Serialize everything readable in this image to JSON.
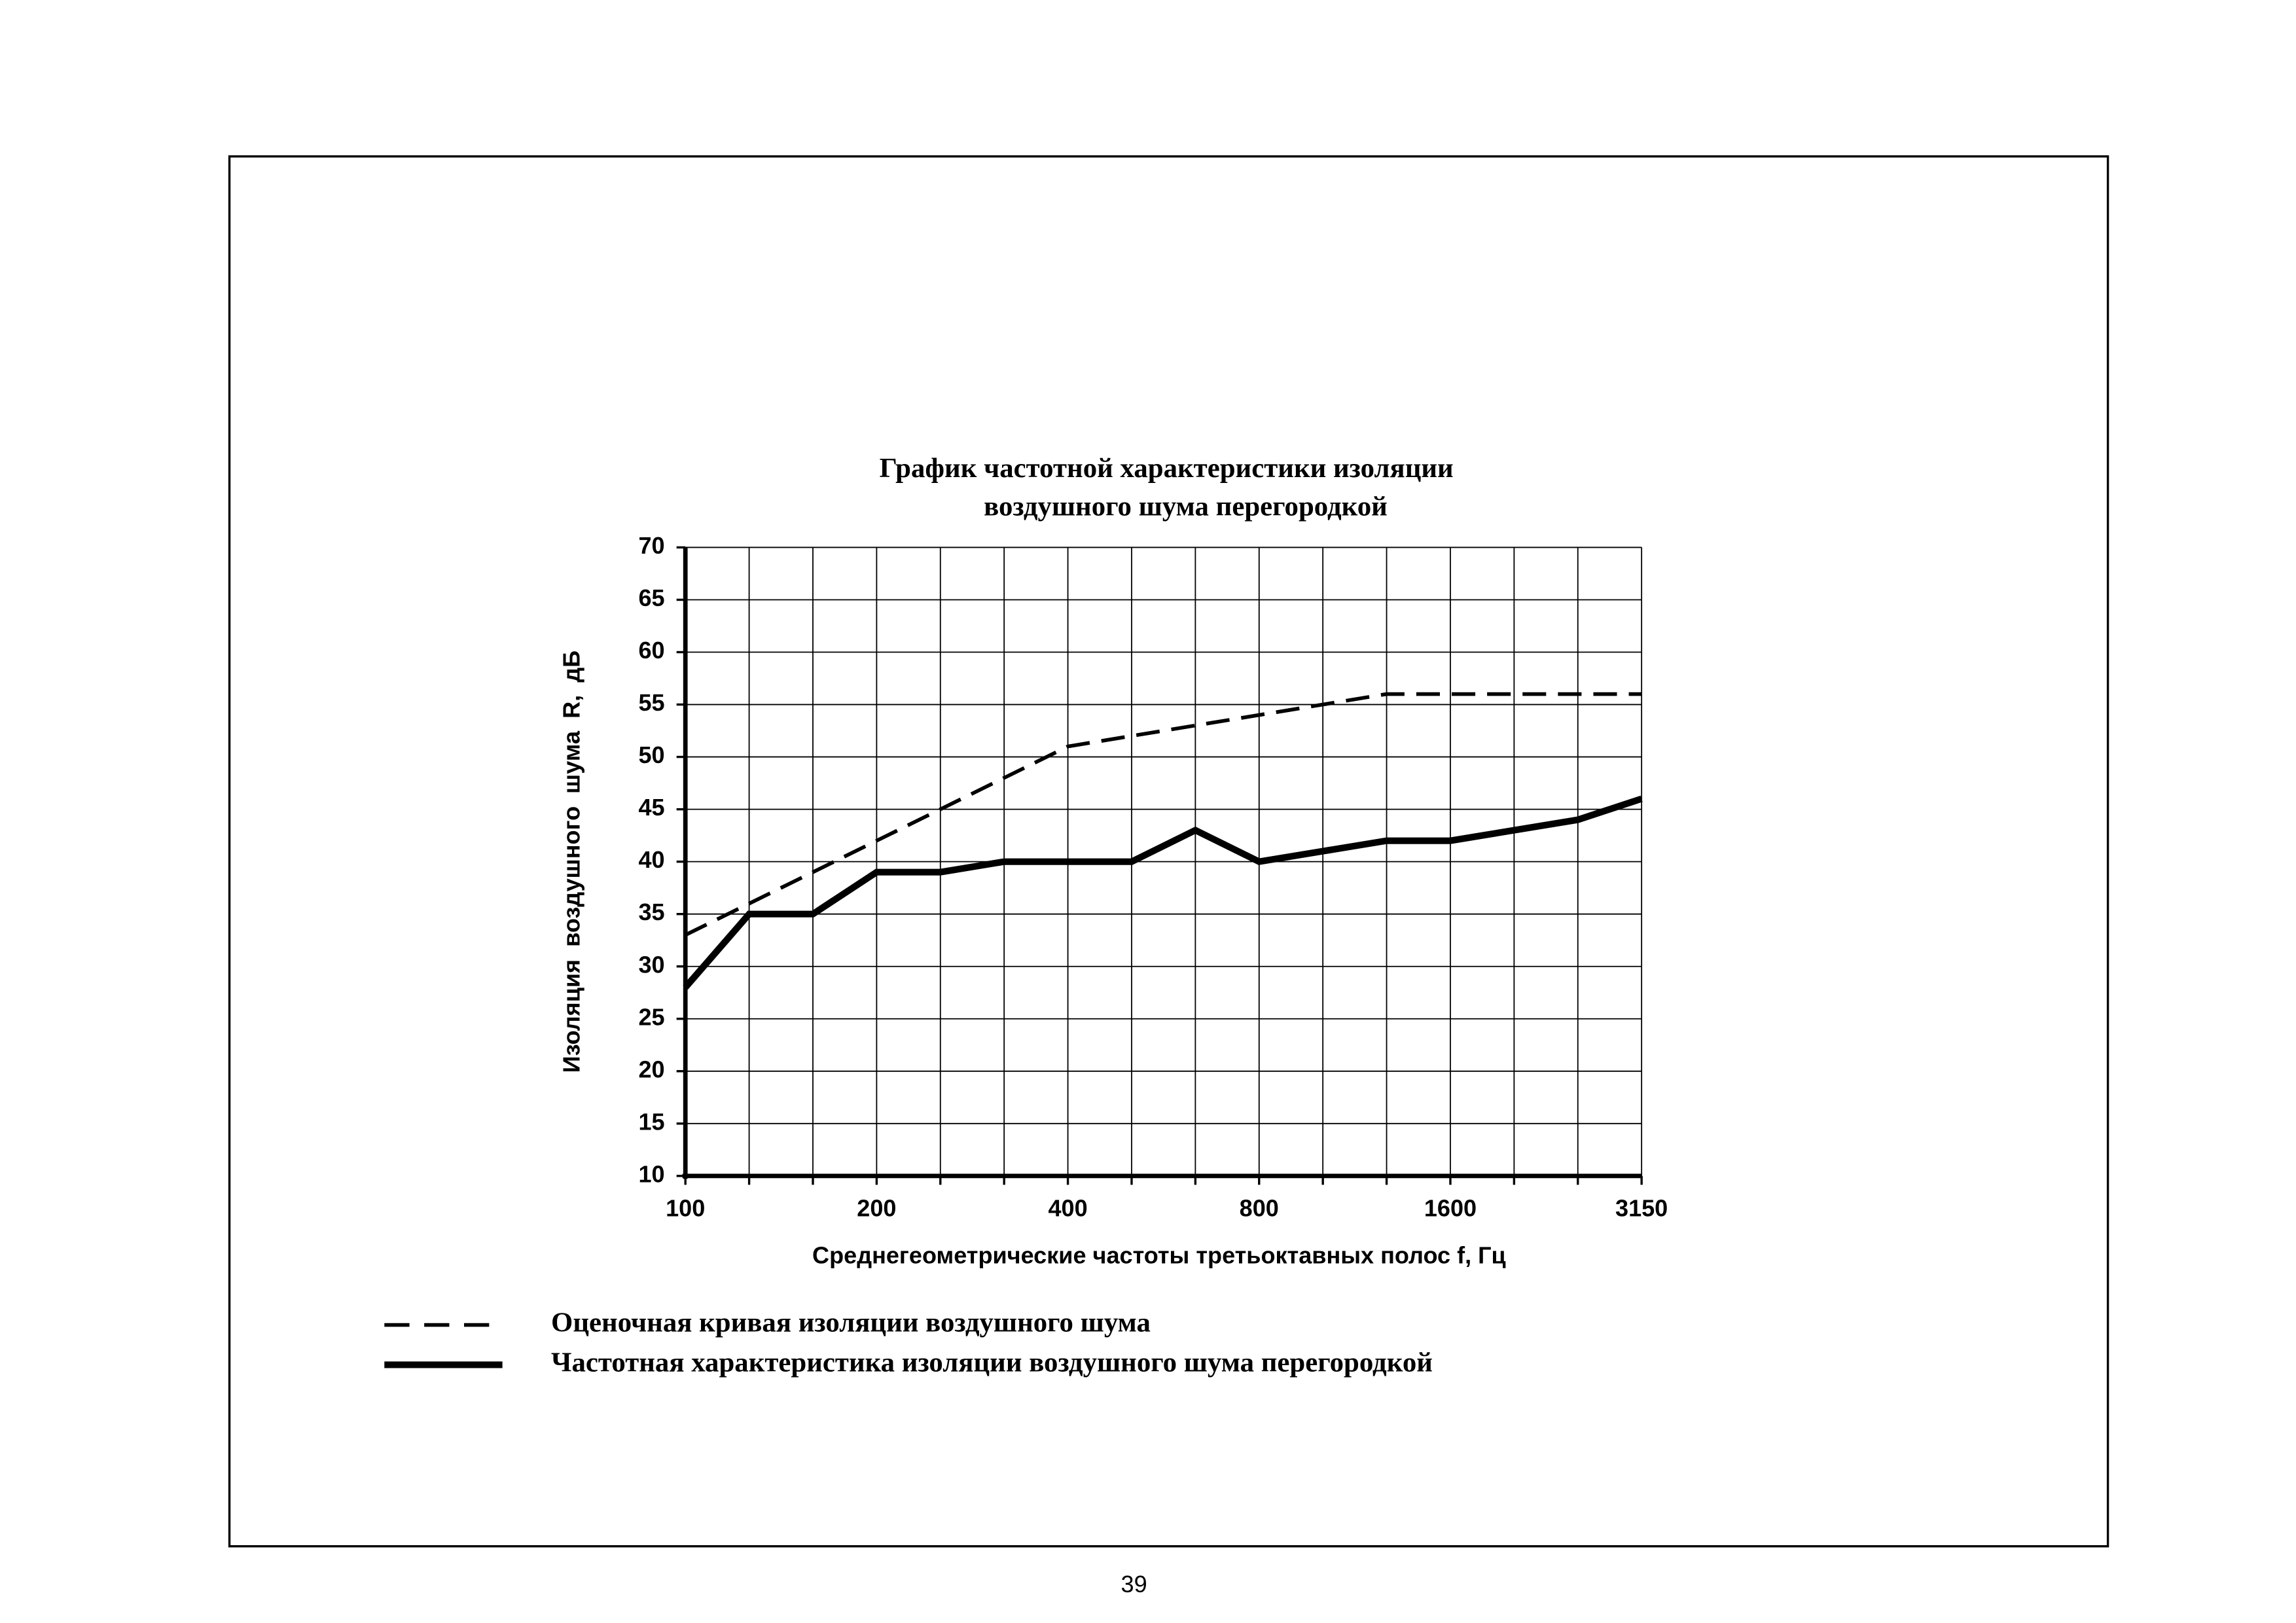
{
  "chart_data": {
    "type": "line",
    "title": [
      "График частотной характеристики изоляции",
      "воздушного шума перегородкой"
    ],
    "x_label": "Среднегеометрические частоты третьоктавных полос f,  Гц",
    "y_label": "Изоляция воздушного шума R, дБ",
    "categories": [
      "100",
      null,
      null,
      "200",
      null,
      null,
      "400",
      null,
      null,
      "800",
      null,
      null,
      "1600",
      null,
      null,
      "3150"
    ],
    "series": [
      {
        "name": "Оценочная кривая изоляции воздушного шума",
        "color": "#000000",
        "line_style": "dashed",
        "values": [
          33,
          36,
          39,
          42,
          45,
          48,
          51,
          52,
          53,
          54,
          55,
          56,
          56,
          56,
          56,
          56
        ]
      },
      {
        "name": "Частотная характеристика изоляции воздушного шума перегородкой",
        "color": "#000000",
        "line_style": "solid",
        "values": [
          28,
          35,
          35,
          39,
          39,
          40,
          40,
          40,
          43,
          40,
          41,
          42,
          42,
          43,
          44,
          46
        ]
      }
    ],
    "ylim": [
      10,
      70
    ],
    "yticks": [
      10,
      15,
      20,
      25,
      30,
      35,
      40,
      45,
      50,
      55,
      60,
      65,
      70
    ],
    "grid": true
  },
  "page_number": "39"
}
